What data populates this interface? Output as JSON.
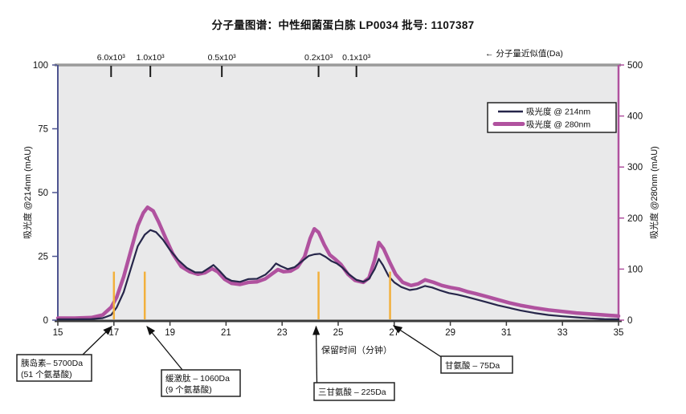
{
  "chart_data": {
    "type": "line",
    "title": "分子量图谱：中性细菌蛋白胨 LP0034  批号: 1107387",
    "xlabel": "保留时间（分钟）",
    "ylabel_left": "吸光度 @214nm (mAU)",
    "ylabel_right": "吸光度 @280nm (mAU)",
    "xlim": [
      15,
      35
    ],
    "ylim_left": [
      0,
      100
    ],
    "ylim_right": [
      0,
      500
    ],
    "x_ticks": [
      15,
      17,
      19,
      21,
      23,
      25,
      27,
      29,
      31,
      33,
      35
    ],
    "left_ticks": [
      0,
      25,
      50,
      75,
      100
    ],
    "right_ticks": [
      0,
      100,
      200,
      300,
      400,
      500
    ],
    "grid": false,
    "legend_position": "upper-right",
    "plot_bg": "#e9e9ea",
    "frame_top_color": "#9a9a9a",
    "left_axis_color": "#4d5490",
    "right_axis_color": "#b0529f",
    "bottom_axis_color": "#3a3a3a",
    "marker_color": "#f2b03c",
    "top_axis": {
      "label": "← 分子量近似值(Da)",
      "ticks": [
        {
          "label": "6.0x10³",
          "x": 16.9
        },
        {
          "label": "1.0x10³",
          "x": 18.3
        },
        {
          "label": "0.5x10³",
          "x": 20.85
        },
        {
          "label": "0.2x10³",
          "x": 24.3
        },
        {
          "label": "0.1x10³",
          "x": 25.65
        }
      ]
    },
    "markers": [
      {
        "x": 17.0,
        "top_left_mau": 19
      },
      {
        "x": 18.1,
        "top_left_mau": 19
      },
      {
        "x": 24.3,
        "top_left_mau": 19
      },
      {
        "x": 26.85,
        "top_left_mau": 19
      }
    ],
    "series": [
      {
        "name": "吸光度 @ 214nm",
        "axis": "left",
        "color": "#26264a",
        "width": 2.2,
        "points": [
          [
            15,
            0.3
          ],
          [
            15.6,
            0.3
          ],
          [
            16.2,
            0.4
          ],
          [
            16.6,
            0.8
          ],
          [
            16.9,
            2
          ],
          [
            17.1,
            5
          ],
          [
            17.35,
            11
          ],
          [
            17.6,
            20
          ],
          [
            17.85,
            29
          ],
          [
            18.1,
            33.5
          ],
          [
            18.3,
            35.3
          ],
          [
            18.5,
            34.5
          ],
          [
            18.75,
            31.5
          ],
          [
            19,
            27.5
          ],
          [
            19.3,
            23.5
          ],
          [
            19.6,
            20.5
          ],
          [
            19.9,
            18.7
          ],
          [
            20.15,
            18.7
          ],
          [
            20.4,
            20.5
          ],
          [
            20.55,
            21.6
          ],
          [
            20.75,
            19.5
          ],
          [
            21,
            16.5
          ],
          [
            21.2,
            15.4
          ],
          [
            21.5,
            15
          ],
          [
            21.8,
            16.1
          ],
          [
            22.1,
            16.2
          ],
          [
            22.4,
            17.8
          ],
          [
            22.6,
            19.8
          ],
          [
            22.78,
            22.2
          ],
          [
            22.95,
            21.2
          ],
          [
            23.2,
            20
          ],
          [
            23.45,
            20.8
          ],
          [
            23.7,
            23
          ],
          [
            23.95,
            25.2
          ],
          [
            24.15,
            25.8
          ],
          [
            24.35,
            26
          ],
          [
            24.55,
            24.8
          ],
          [
            24.75,
            23.2
          ],
          [
            24.95,
            22.2
          ],
          [
            25.15,
            20.6
          ],
          [
            25.4,
            17.8
          ],
          [
            25.65,
            15.8
          ],
          [
            25.9,
            15
          ],
          [
            26.1,
            16.2
          ],
          [
            26.3,
            20
          ],
          [
            26.45,
            24
          ],
          [
            26.6,
            21.5
          ],
          [
            26.8,
            17.2
          ],
          [
            27,
            14.8
          ],
          [
            27.25,
            13
          ],
          [
            27.55,
            11.8
          ],
          [
            27.8,
            12.2
          ],
          [
            28.1,
            13.4
          ],
          [
            28.35,
            12.8
          ],
          [
            28.65,
            11.6
          ],
          [
            28.95,
            10.6
          ],
          [
            29.25,
            10
          ],
          [
            29.55,
            9.2
          ],
          [
            29.9,
            8.2
          ],
          [
            30.3,
            7
          ],
          [
            30.7,
            5.8
          ],
          [
            31.1,
            4.8
          ],
          [
            31.5,
            3.8
          ],
          [
            32,
            2.8
          ],
          [
            32.5,
            2
          ],
          [
            33,
            1.5
          ],
          [
            33.5,
            1.1
          ],
          [
            34,
            0.7
          ],
          [
            34.5,
            0.4
          ],
          [
            35,
            0.3
          ]
        ]
      },
      {
        "name": "吸光度 @ 280nm",
        "axis": "right",
        "color": "#b0529f",
        "width": 4.5,
        "points": [
          [
            15,
            4
          ],
          [
            15.6,
            4
          ],
          [
            16.2,
            5
          ],
          [
            16.6,
            10
          ],
          [
            16.9,
            25
          ],
          [
            17.1,
            45
          ],
          [
            17.35,
            85
          ],
          [
            17.6,
            135
          ],
          [
            17.85,
            185
          ],
          [
            18.05,
            210
          ],
          [
            18.2,
            221
          ],
          [
            18.4,
            214
          ],
          [
            18.6,
            192
          ],
          [
            18.85,
            160
          ],
          [
            19.1,
            130
          ],
          [
            19.4,
            105
          ],
          [
            19.7,
            95
          ],
          [
            20,
            90
          ],
          [
            20.25,
            93
          ],
          [
            20.5,
            101
          ],
          [
            20.7,
            95
          ],
          [
            20.95,
            80
          ],
          [
            21.2,
            72
          ],
          [
            21.5,
            70
          ],
          [
            21.8,
            74
          ],
          [
            22.1,
            75
          ],
          [
            22.4,
            81
          ],
          [
            22.65,
            91
          ],
          [
            22.85,
            99
          ],
          [
            23.05,
            95
          ],
          [
            23.3,
            96
          ],
          [
            23.55,
            104
          ],
          [
            23.8,
            124
          ],
          [
            24,
            160
          ],
          [
            24.15,
            179
          ],
          [
            24.3,
            172
          ],
          [
            24.5,
            148
          ],
          [
            24.7,
            128
          ],
          [
            24.9,
            119
          ],
          [
            25.1,
            109
          ],
          [
            25.35,
            90
          ],
          [
            25.6,
            78
          ],
          [
            25.9,
            74
          ],
          [
            26.1,
            83
          ],
          [
            26.3,
            118
          ],
          [
            26.45,
            152
          ],
          [
            26.62,
            140
          ],
          [
            26.85,
            112
          ],
          [
            27.05,
            90
          ],
          [
            27.3,
            74
          ],
          [
            27.6,
            68
          ],
          [
            27.85,
            71
          ],
          [
            28.1,
            79
          ],
          [
            28.4,
            74
          ],
          [
            28.7,
            68
          ],
          [
            29,
            64
          ],
          [
            29.3,
            61
          ],
          [
            29.6,
            56
          ],
          [
            29.9,
            52
          ],
          [
            30.3,
            46
          ],
          [
            30.7,
            40
          ],
          [
            31.1,
            34
          ],
          [
            31.5,
            29
          ],
          [
            32,
            24
          ],
          [
            32.5,
            20
          ],
          [
            33,
            17
          ],
          [
            33.5,
            14
          ],
          [
            34,
            12
          ],
          [
            34.5,
            10
          ],
          [
            35,
            8
          ]
        ]
      }
    ]
  },
  "legend": {
    "items": [
      {
        "label": "吸光度 @ 214nm"
      },
      {
        "label": "吸光度 @ 280nm"
      }
    ]
  },
  "callouts": [
    {
      "lines": [
        "胰岛素– 5700Da",
        "(51 个氨基酸)"
      ],
      "points_to_min": 17.0
    },
    {
      "lines": [
        "缓激肽 – 1060Da",
        "(9 个氨基酸)"
      ],
      "points_to_min": 18.1
    },
    {
      "lines": [
        "三甘氨酸 – 225Da"
      ],
      "points_to_min": 24.3
    },
    {
      "lines": [
        "甘氨酸 – 75Da"
      ],
      "points_to_min": 26.85
    }
  ]
}
